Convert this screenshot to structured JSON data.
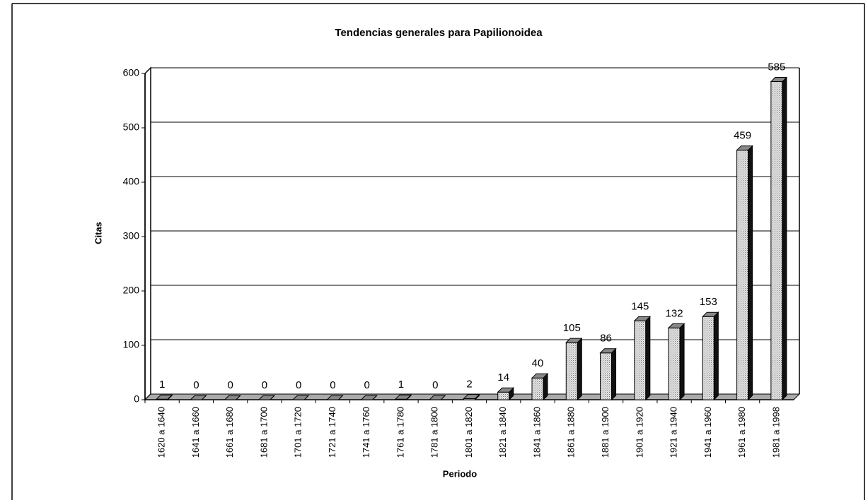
{
  "chart_data": {
    "type": "bar3d",
    "title": "Tendencias generales para Papilionoidea",
    "x_label": "Periodo",
    "y_label": "Citas",
    "categories": [
      "1620 a 1640",
      "1641 a 1660",
      "1661 a 1680",
      "1681 a 1700",
      "1701 a 1720",
      "1721 a 1740",
      "1741 a 1760",
      "1761 a 1780",
      "1781 a 1800",
      "1801 a 1820",
      "1821 a 1840",
      "1841 a 1860",
      "1861 a 1880",
      "1881 a 1900",
      "1901 a 1920",
      "1921 a 1940",
      "1941 a 1960",
      "1961 a 1980",
      "1981 a 1998"
    ],
    "values": [
      1,
      0,
      0,
      0,
      0,
      0,
      0,
      1,
      0,
      2,
      14,
      40,
      105,
      86,
      145,
      132,
      153,
      459,
      585
    ],
    "color": "#c8c8c8",
    "ylim": [
      0,
      600
    ],
    "yticks": [
      0,
      100,
      200,
      300,
      400,
      500,
      600
    ],
    "grid": true
  }
}
